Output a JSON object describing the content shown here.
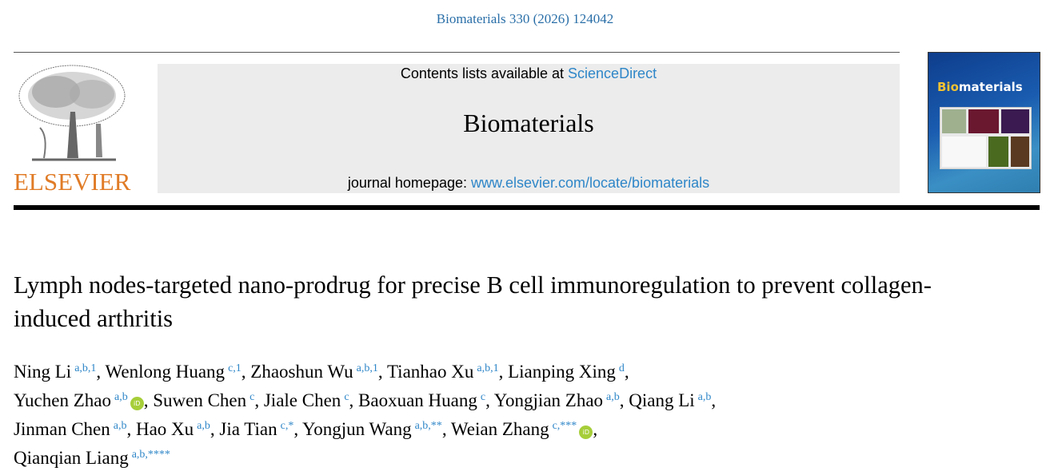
{
  "citation": "Biomaterials 330 (2026) 124042",
  "publisher_logo": "ELSEVIER",
  "contents_prefix": "Contents lists available at ",
  "contents_link": "ScienceDirect",
  "journal_name": "Biomaterials",
  "homepage_prefix": "journal homepage: ",
  "homepage_link": "www.elsevier.com/locate/biomaterials",
  "cover": {
    "title_highlight": "Bio",
    "title_rest": "materials"
  },
  "colors": {
    "link": "#2e86c8",
    "elsevier": "#e07b26",
    "orcid": "#a6ce39"
  },
  "title": "Lymph nodes-targeted nano-prodrug for precise B cell immunoregulation to prevent collagen-induced arthritis",
  "authors": [
    {
      "name": "Ning Li",
      "sup": "a,b,1"
    },
    {
      "name": "Wenlong Huang",
      "sup": "c,1"
    },
    {
      "name": "Zhaoshun Wu",
      "sup": "a,b,1"
    },
    {
      "name": "Tianhao Xu",
      "sup": "a,b,1"
    },
    {
      "name": "Lianping Xing",
      "sup": "d"
    },
    {
      "name": "Yuchen Zhao",
      "sup": "a,b",
      "orcid": true
    },
    {
      "name": "Suwen Chen",
      "sup": "c"
    },
    {
      "name": "Jiale Chen",
      "sup": "c"
    },
    {
      "name": "Baoxuan Huang",
      "sup": "c"
    },
    {
      "name": "Yongjian Zhao",
      "sup": "a,b"
    },
    {
      "name": "Qiang Li",
      "sup": "a,b"
    },
    {
      "name": "Jinman Chen",
      "sup": "a,b"
    },
    {
      "name": "Hao Xu",
      "sup": "a,b"
    },
    {
      "name": "Jia Tian",
      "sup": "c,*"
    },
    {
      "name": "Yongjun Wang",
      "sup": "a,b,**"
    },
    {
      "name": "Weian Zhang",
      "sup": "c,***",
      "orcid": true
    },
    {
      "name": "Qianqian Liang",
      "sup": "a,b,****"
    }
  ],
  "orcid_label": "iD"
}
